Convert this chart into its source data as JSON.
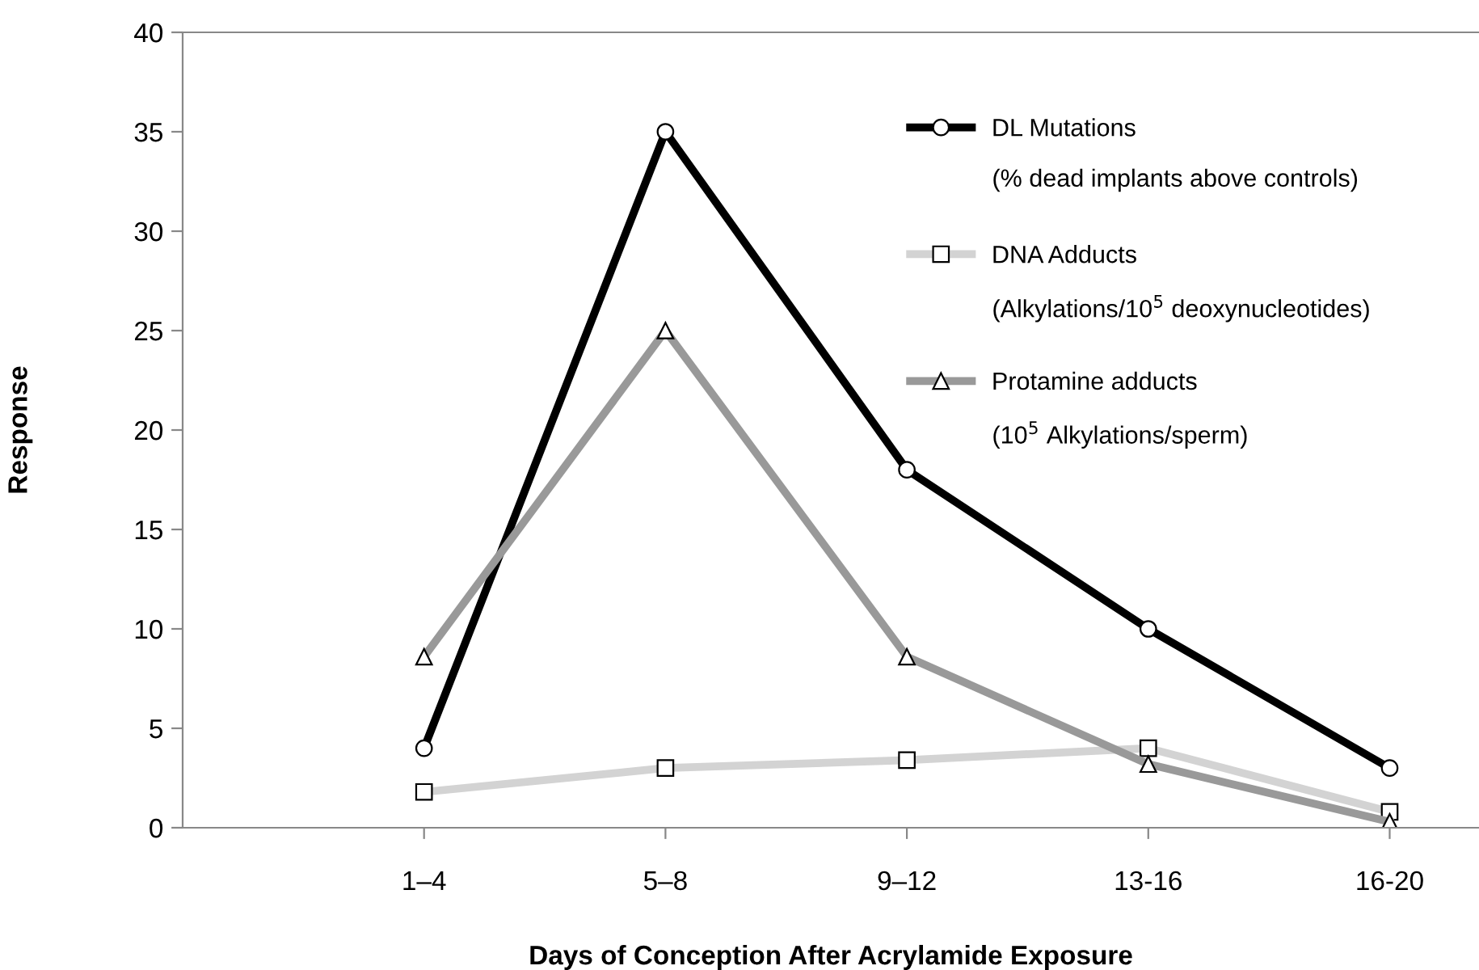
{
  "chart_data": {
    "type": "line",
    "xlabel": "Days of Conception After Acrylamide Exposure",
    "ylabel": "Response",
    "categories": [
      "1–4",
      "5–8",
      "9–12",
      "13-16",
      "16-20"
    ],
    "series": [
      {
        "name": "DL Mutations",
        "color": "#000000",
        "marker": "circle",
        "values": [
          4,
          35,
          18,
          10,
          3
        ]
      },
      {
        "name": "DNA Adducts",
        "color": "#d3d3d3",
        "marker": "square",
        "values": [
          1.8,
          3.0,
          3.4,
          4.0,
          0.8
        ]
      },
      {
        "name": "Protamine adducts",
        "color": "#999999",
        "marker": "triangle",
        "values": [
          8.6,
          25,
          8.6,
          3.2,
          0.3
        ]
      }
    ],
    "annotations": [
      "(% dead implants above controls)",
      "(Alkylations/10$^{5}$ deoxynucleotides)",
      "(10$^{5}$ Alkylations/sperm)"
    ],
    "ylim": [
      0,
      40
    ],
    "yticks": [
      0,
      5,
      10,
      15,
      20,
      25,
      30,
      35,
      40
    ],
    "grid": false,
    "legend": "top right",
    "line_style": "solid"
  }
}
